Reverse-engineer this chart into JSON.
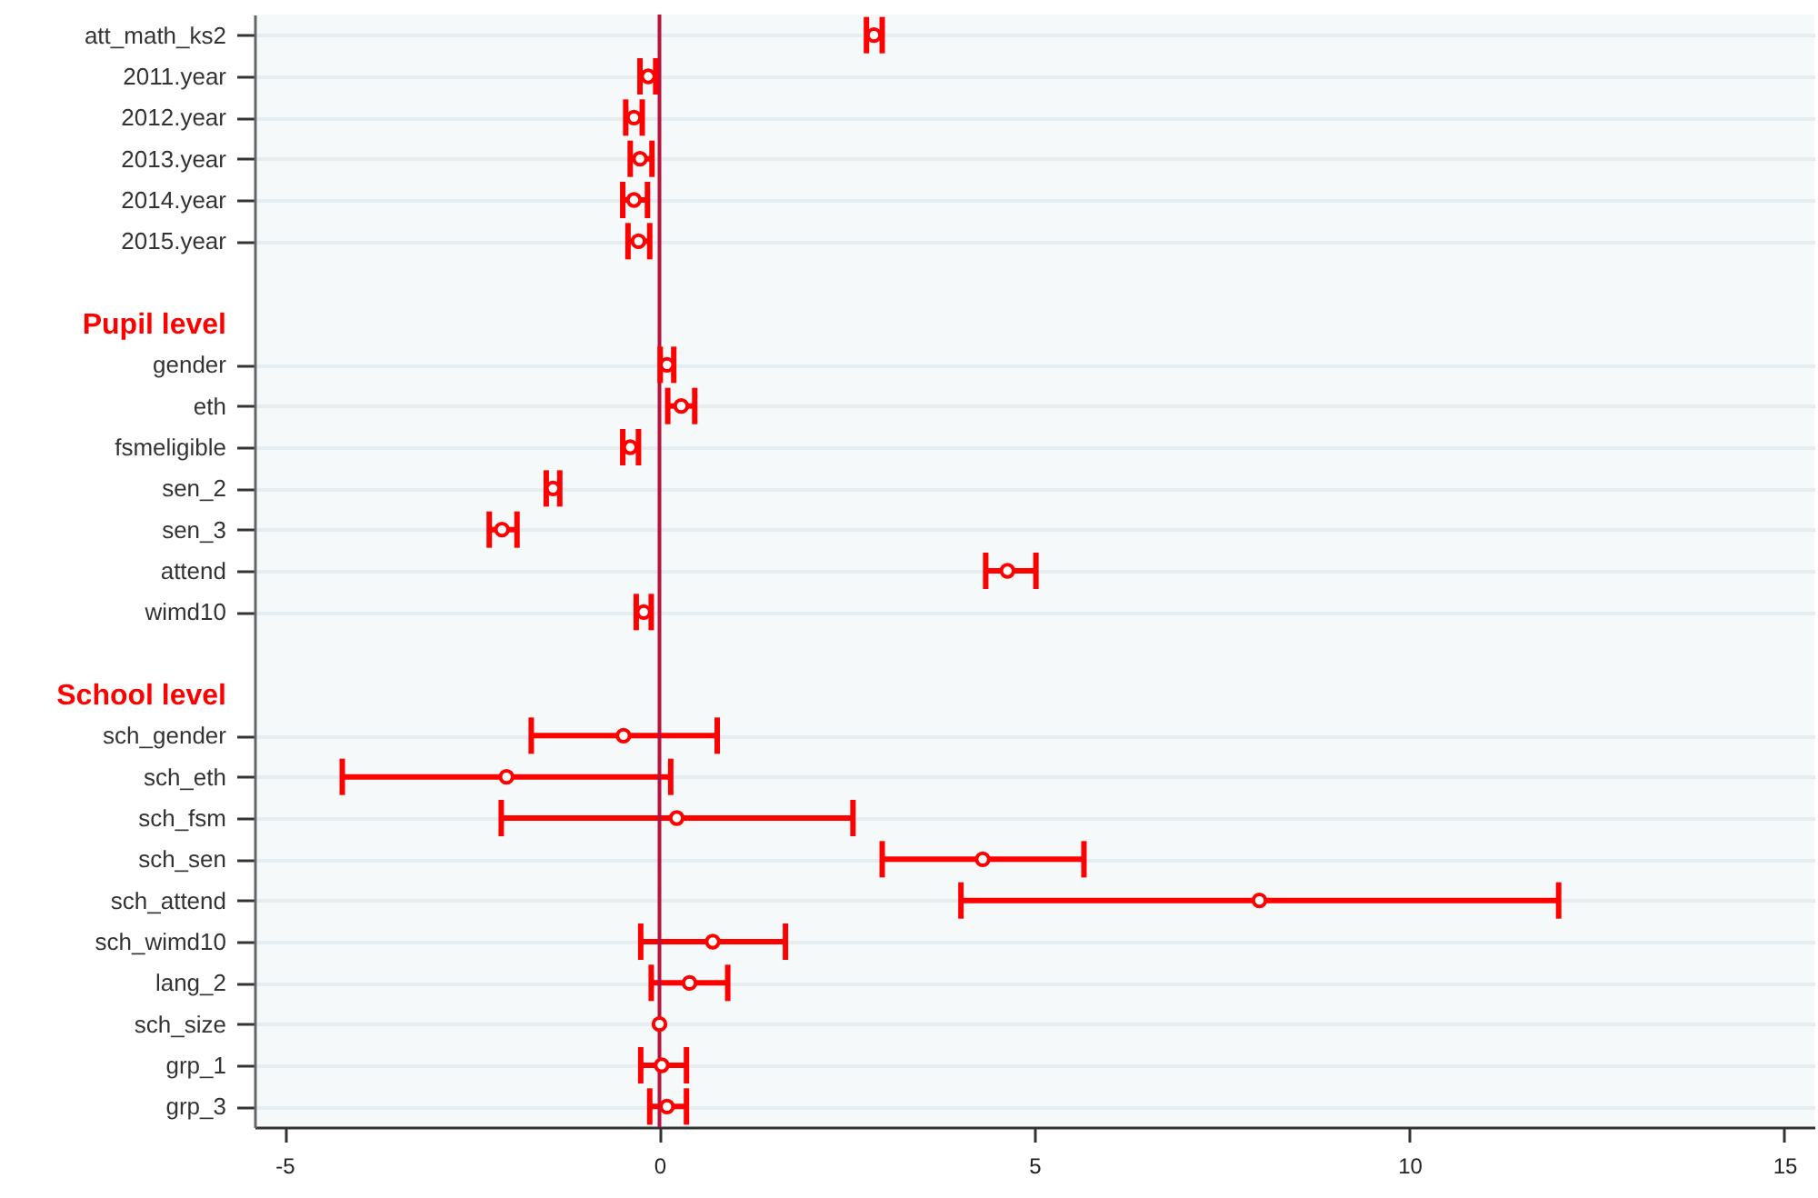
{
  "chart_data": {
    "type": "scatter",
    "orientation": "horizontal",
    "categories": [
      "att_math_ks2",
      "2011.year",
      "2012.year",
      "2013.year",
      "2014.year",
      "2015.year",
      null,
      "Pupil level",
      "gender",
      "eth",
      "fsmeligible",
      "sen_2",
      "sen_3",
      "attend",
      "wimd10",
      null,
      "School level",
      "sch_gender",
      "sch_eth",
      "sch_fsm",
      "sch_sen",
      "sch_attend",
      "sch_wimd10",
      "lang_2",
      "sch_size",
      "grp_1",
      "grp_3"
    ],
    "series": [
      {
        "color": "#ff0000",
        "values": [
          2.86,
          -0.15,
          -0.34,
          -0.26,
          -0.34,
          -0.28,
          null,
          null,
          0.1,
          0.29,
          -0.39,
          -1.42,
          -2.1,
          4.64,
          -0.21,
          null,
          null,
          -0.48,
          -2.04,
          0.23,
          4.31,
          8.0,
          0.71,
          0.4,
          0.0,
          0.03,
          0.1
        ],
        "errors": [
          [
            2.76,
            2.97
          ],
          [
            -0.26,
            -0.05
          ],
          [
            -0.45,
            -0.23
          ],
          [
            -0.39,
            -0.1
          ],
          [
            -0.49,
            -0.16
          ],
          [
            -0.42,
            -0.13
          ],
          null,
          null,
          [
            0.01,
            0.19
          ],
          [
            0.11,
            0.47
          ],
          [
            -0.49,
            -0.28
          ],
          [
            -1.51,
            -1.33
          ],
          [
            -2.27,
            -1.9
          ],
          [
            4.35,
            5.02
          ],
          [
            -0.31,
            -0.11
          ],
          null,
          null,
          [
            -1.71,
            0.77
          ],
          [
            -4.23,
            0.15
          ],
          [
            -2.11,
            2.58
          ],
          [
            2.97,
            5.66
          ],
          [
            4.02,
            11.99
          ],
          [
            -0.25,
            1.68
          ],
          [
            -0.11,
            0.91
          ],
          null,
          [
            -0.25,
            0.36
          ],
          [
            -0.13,
            0.36
          ]
        ]
      }
    ],
    "xlim": [
      -5.4,
      15.4
    ],
    "xticks": [
      -5,
      0,
      5,
      10,
      15
    ],
    "ref_lines": [
      {
        "axis": "x",
        "value": 0,
        "color": "#b5123f"
      }
    ],
    "grid": "y",
    "marker": "circle"
  }
}
